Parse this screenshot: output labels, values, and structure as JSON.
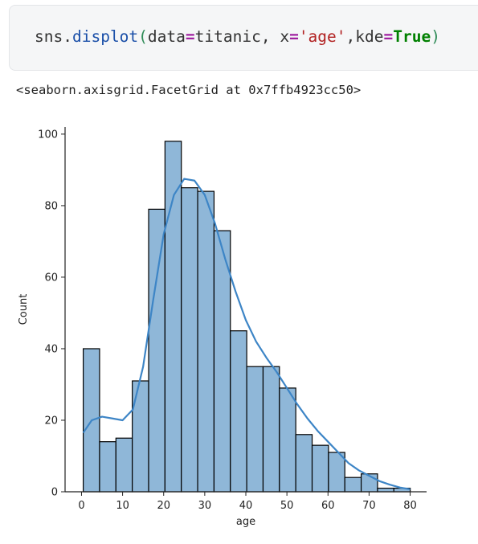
{
  "code": {
    "obj": "sns",
    "dot": ".",
    "fn": "displot",
    "open": "(",
    "arg1": "data",
    "eq1": "=",
    "val1": "titanic",
    "comma1": ", ",
    "arg2": "x",
    "eq2": "=",
    "val2": "'age'",
    "comma2": ",",
    "arg3": "kde",
    "eq3": "=",
    "val3": "True",
    "close": ")"
  },
  "output_repr": "<seaborn.axisgrid.FacetGrid at 0x7ffb4923cc50>",
  "chart_data": {
    "type": "bar",
    "subtype": "histogram",
    "xlabel": "age",
    "ylabel": "Count",
    "xlim": [
      -4,
      84
    ],
    "ylim": [
      0,
      102
    ],
    "xticks": [
      0,
      10,
      20,
      30,
      40,
      50,
      60,
      70,
      80
    ],
    "yticks": [
      0,
      20,
      40,
      60,
      80,
      100
    ],
    "bin_edges": [
      0.42,
      4.4,
      8.38,
      12.36,
      16.34,
      20.32,
      24.3,
      28.28,
      32.26,
      36.24,
      40.22,
      44.2,
      48.18,
      52.16,
      56.14,
      60.12,
      64.1,
      68.08,
      72.06,
      76.04,
      80.02
    ],
    "values": [
      40,
      14,
      15,
      31,
      79,
      98,
      85,
      84,
      73,
      45,
      35,
      35,
      29,
      16,
      13,
      11,
      4,
      5,
      1,
      1
    ],
    "bar_color": "#8fb7d8",
    "bar_edge_color": "#000000",
    "kde": {
      "color": "#3d85c6",
      "x": [
        0.42,
        2.5,
        5,
        7.5,
        10,
        12.5,
        15,
        17.5,
        20,
        22.5,
        25,
        27.5,
        30,
        32.5,
        35,
        37.5,
        40,
        42.5,
        45,
        47.5,
        50,
        52.5,
        55,
        57.5,
        60,
        62.5,
        65,
        67.5,
        70,
        72.5,
        75,
        77.5,
        80
      ],
      "y": [
        16.5,
        20,
        21,
        20.5,
        20,
        23,
        35,
        54,
        72,
        83,
        87.5,
        87,
        83,
        75,
        65,
        56,
        48,
        42,
        37.5,
        33.5,
        29,
        24.5,
        20.5,
        17,
        14,
        11,
        8,
        6,
        4.5,
        3,
        2,
        1.2,
        0.7
      ]
    }
  }
}
